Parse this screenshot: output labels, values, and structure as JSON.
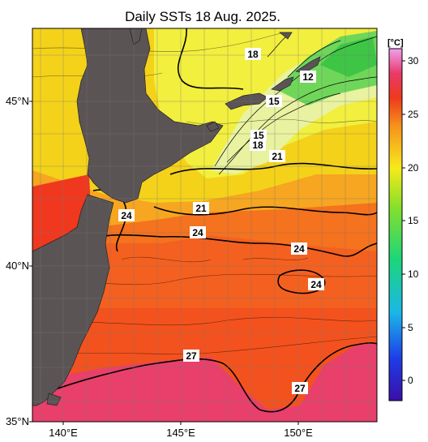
{
  "title": "Daily SSTs 18 Aug. 2025.",
  "lat_labels": [
    "45°N",
    "40°N",
    "35°N"
  ],
  "lon_labels": [
    "140°E",
    "145°E",
    "150°E"
  ],
  "contour_labels": [
    "18",
    "12",
    "15",
    "15",
    "18",
    "21",
    "21",
    "24",
    "24",
    "24",
    "24",
    "27",
    "27"
  ],
  "colorbar": {
    "unit": "[°C]",
    "ticks": [
      "30",
      "25",
      "20",
      "15",
      "10",
      "5",
      "0"
    ],
    "range": [
      -2,
      31
    ]
  },
  "colors": {
    "land": "#5b5455",
    "warm_sea": "#f04a1e",
    "hot_sea": "#e83a5a",
    "mid_sea": "#f57a1f",
    "cool_sea": "#f7e41a",
    "cold_sea": "#55d24a"
  }
}
